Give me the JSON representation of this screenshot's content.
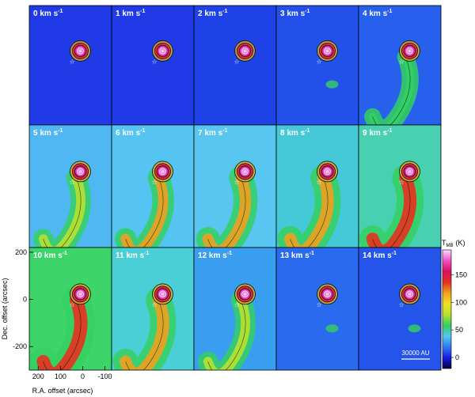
{
  "chart_data": {
    "type": "heatmap",
    "title": "",
    "channel_unit": "km s",
    "channel_unit_exp": "-1",
    "panels": [
      {
        "velocity": "0",
        "label": "0 km s",
        "bg": "#1f3ae6",
        "source_level": 0.9,
        "ext_level": 0.1
      },
      {
        "velocity": "1",
        "label": "1 km s",
        "bg": "#1f3ae6",
        "source_level": 0.9,
        "ext_level": 0.12
      },
      {
        "velocity": "2",
        "label": "2 km s",
        "bg": "#1e42e8",
        "source_level": 0.9,
        "ext_level": 0.15
      },
      {
        "velocity": "3",
        "label": "3 km s",
        "bg": "#2350ea",
        "source_level": 0.92,
        "ext_level": 0.25
      },
      {
        "velocity": "4",
        "label": "4 km s",
        "bg": "#2760ec",
        "source_level": 0.95,
        "ext_level": 0.4
      },
      {
        "velocity": "5",
        "label": "5 km s",
        "bg": "#4fb8f2",
        "source_level": 0.95,
        "ext_level": 0.55
      },
      {
        "velocity": "6",
        "label": "6 km s",
        "bg": "#56c4f2",
        "source_level": 0.97,
        "ext_level": 0.62
      },
      {
        "velocity": "7",
        "label": "7 km s",
        "bg": "#58c6f0",
        "source_level": 0.97,
        "ext_level": 0.72
      },
      {
        "velocity": "8",
        "label": "8 km s",
        "bg": "#45c9d8",
        "source_level": 0.98,
        "ext_level": 0.8
      },
      {
        "velocity": "9",
        "label": "9 km s",
        "bg": "#48d0b0",
        "source_level": 0.98,
        "ext_level": 0.85
      },
      {
        "velocity": "10",
        "label": "10 km s",
        "bg": "#3dd46a",
        "source_level": 0.98,
        "ext_level": 0.9
      },
      {
        "velocity": "11",
        "label": "11 km s",
        "bg": "#4bcfd6",
        "source_level": 0.97,
        "ext_level": 0.8
      },
      {
        "velocity": "12",
        "label": "12 km s",
        "bg": "#3a9ef0",
        "source_level": 0.95,
        "ext_level": 0.55
      },
      {
        "velocity": "13",
        "label": "13 km s",
        "bg": "#2a6aee",
        "source_level": 0.93,
        "ext_level": 0.3
      },
      {
        "velocity": "14",
        "label": "14 km s",
        "bg": "#2454ea",
        "source_level": 0.92,
        "ext_level": 0.2
      }
    ],
    "xlabel": "R.A. offset (arcsec)",
    "ylabel": "Dec. offset (arcsec)",
    "x_ticks": [
      200,
      100,
      0,
      -100
    ],
    "y_ticks": [
      200,
      0,
      -200
    ],
    "xlim": [
      240,
      -130
    ],
    "ylim": [
      -300,
      220
    ],
    "colorbar": {
      "label_main": "T",
      "label_sub": "MB",
      "label_unit": "(K)",
      "ticks": [
        0,
        50,
        100,
        150
      ],
      "range": [
        -20,
        195
      ],
      "stops": [
        "#000040",
        "#1a1ae6",
        "#2f7cf0",
        "#55c8f0",
        "#34d060",
        "#b8e030",
        "#f0e020",
        "#f0a020",
        "#e83020",
        "#d81060",
        "#f050c8",
        "#ffd8ff"
      ]
    },
    "scale_bar": "30000 AU",
    "grid": false,
    "legend": "none"
  }
}
